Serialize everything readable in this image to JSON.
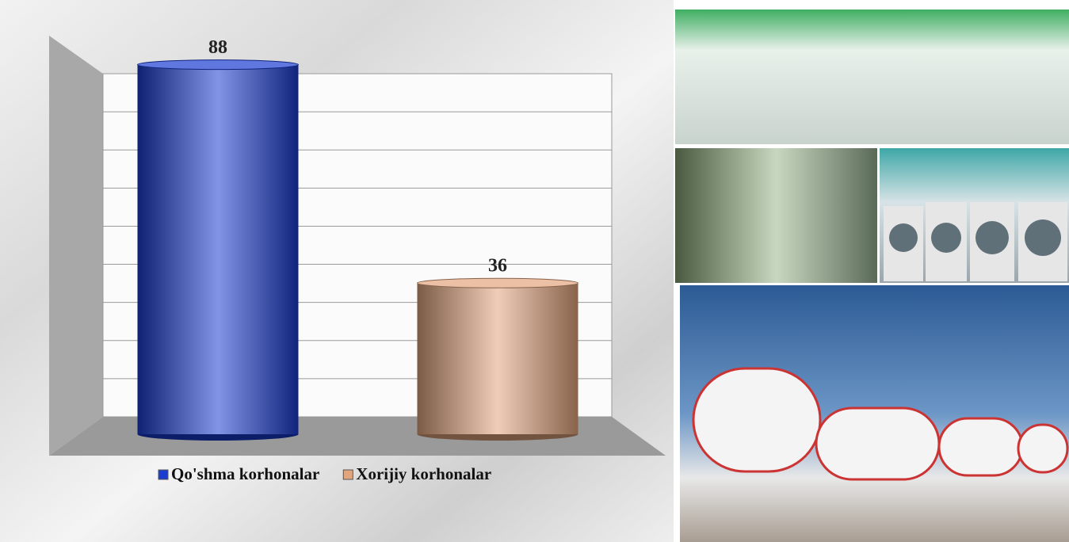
{
  "chart_data": {
    "type": "bar",
    "series": [
      {
        "name": "Qo'shma korhonalar",
        "color": "#1a3cd0",
        "values": [
          88
        ]
      },
      {
        "name": "Xorijiy korhonalar",
        "color": "#e2a57e",
        "values": [
          36
        ]
      }
    ],
    "ylim": [
      0,
      90
    ],
    "yticks": [
      0,
      10,
      20,
      30,
      40,
      50,
      60,
      70,
      80,
      90
    ],
    "grid": true,
    "legend": "bottom"
  }
}
